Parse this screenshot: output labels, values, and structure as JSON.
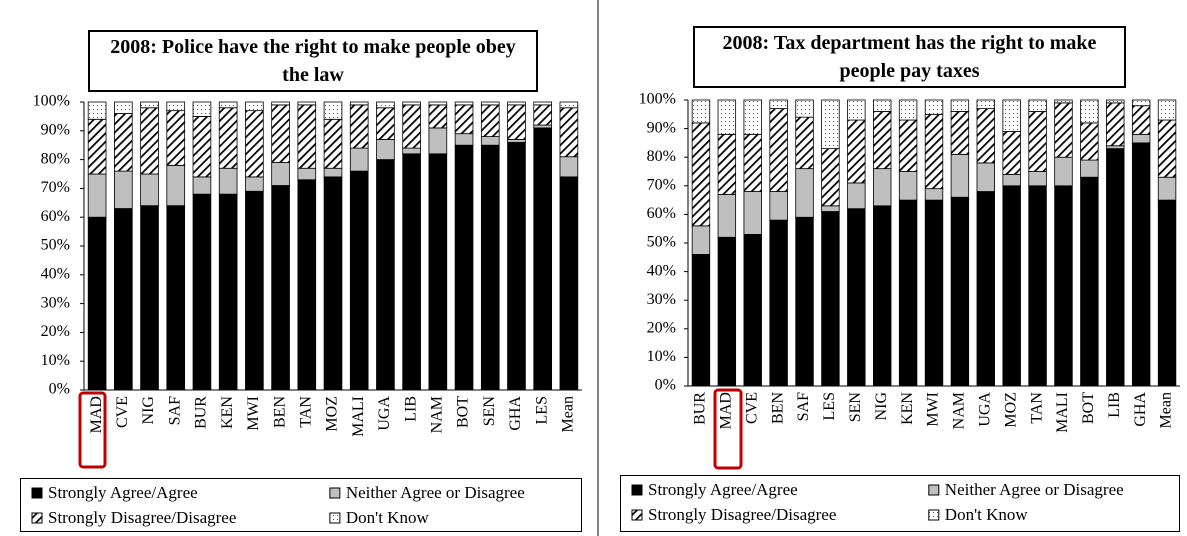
{
  "chart_data": [
    {
      "type": "stacked_bar",
      "title": "2008: Police have the right to make people obey the law",
      "categories": [
        "MAD",
        "CVE",
        "NIG",
        "SAF",
        "BUR",
        "KEN",
        "MWI",
        "BEN",
        "TAN",
        "MOZ",
        "MALI",
        "UGA",
        "LIB",
        "NAM",
        "BOT",
        "SEN",
        "GHA",
        "LES",
        "Mean"
      ],
      "series": [
        {
          "name": "Strongly Agree/Agree",
          "color": "#000000",
          "pattern": "solid",
          "values": [
            60,
            63,
            64,
            64,
            68,
            68,
            69,
            71,
            73,
            74,
            76,
            80,
            82,
            82,
            85,
            85,
            86,
            91,
            74
          ]
        },
        {
          "name": "Neither Agree or Disagree",
          "color": "#bfbfbf",
          "pattern": "solid",
          "values": [
            15,
            13,
            11,
            14,
            6,
            9,
            5,
            8,
            4,
            3,
            8,
            7,
            2,
            9,
            4,
            3,
            1,
            1,
            7
          ]
        },
        {
          "name": "Strongly Disagree/Disagree",
          "color": "#000000",
          "pattern": "hatch",
          "values": [
            19,
            20,
            23,
            19,
            21,
            21,
            23,
            20,
            22,
            17,
            15,
            11,
            15,
            8,
            10,
            11,
            12,
            7,
            17
          ]
        },
        {
          "name": "Don't Know",
          "color": "#000000",
          "pattern": "dots",
          "values": [
            6,
            4,
            2,
            3,
            5,
            2,
            3,
            1,
            1,
            6,
            1,
            2,
            1,
            1,
            1,
            1,
            1,
            1,
            2
          ]
        }
      ],
      "ylim": [
        0,
        100
      ],
      "yticks": [
        {
          "value": 0,
          "label": "0%"
        },
        {
          "value": 10,
          "label": "10%"
        },
        {
          "value": 20,
          "label": "20%"
        },
        {
          "value": 30,
          "label": "30%"
        },
        {
          "value": 40,
          "label": "40%"
        },
        {
          "value": 50,
          "label": "50%"
        },
        {
          "value": 60,
          "label": "60%"
        },
        {
          "value": 70,
          "label": "70%"
        },
        {
          "value": 80,
          "label": "80%"
        },
        {
          "value": 90,
          "label": "90%"
        },
        {
          "value": 100,
          "label": "100%"
        }
      ],
      "grid": false
    },
    {
      "type": "stacked_bar",
      "title": "2008: Tax department has the right to make people pay taxes",
      "categories": [
        "BUR",
        "MAD",
        "CVE",
        "BEN",
        "SAF",
        "LES",
        "SEN",
        "NIG",
        "KEN",
        "MWI",
        "NAM",
        "UGA",
        "MOZ",
        "TAN",
        "MALI",
        "BOT",
        "LIB",
        "GHA",
        "Mean"
      ],
      "series": [
        {
          "name": "Strongly Agree/Agree",
          "color": "#000000",
          "pattern": "solid",
          "values": [
            46,
            52,
            53,
            58,
            59,
            61,
            62,
            63,
            65,
            65,
            66,
            68,
            70,
            70,
            70,
            73,
            83,
            85,
            65
          ]
        },
        {
          "name": "Neither Agree or Disagree",
          "color": "#bfbfbf",
          "pattern": "solid",
          "values": [
            10,
            15,
            15,
            10,
            17,
            2,
            9,
            13,
            10,
            4,
            15,
            10,
            4,
            5,
            10,
            6,
            1,
            3,
            8
          ]
        },
        {
          "name": "Strongly Disagree/Disagree",
          "color": "#000000",
          "pattern": "hatch",
          "values": [
            36,
            21,
            20,
            29,
            18,
            20,
            22,
            20,
            18,
            26,
            15,
            19,
            15,
            21,
            19,
            13,
            15,
            10,
            20
          ]
        },
        {
          "name": "Don't Know",
          "color": "#000000",
          "pattern": "dots",
          "values": [
            8,
            12,
            12,
            3,
            6,
            17,
            7,
            4,
            7,
            5,
            4,
            3,
            11,
            4,
            1,
            8,
            1,
            2,
            7
          ]
        }
      ],
      "ylim": [
        0,
        100
      ],
      "yticks": [
        {
          "value": 0,
          "label": "0%"
        },
        {
          "value": 10,
          "label": "10%"
        },
        {
          "value": 20,
          "label": "20%"
        },
        {
          "value": 30,
          "label": "30%"
        },
        {
          "value": 40,
          "label": "40%"
        },
        {
          "value": 50,
          "label": "50%"
        },
        {
          "value": 60,
          "label": "60%"
        },
        {
          "value": 70,
          "label": "70%"
        },
        {
          "value": 80,
          "label": "80%"
        },
        {
          "value": 90,
          "label": "90%"
        },
        {
          "value": 100,
          "label": "100%"
        }
      ],
      "grid": false
    }
  ]
}
